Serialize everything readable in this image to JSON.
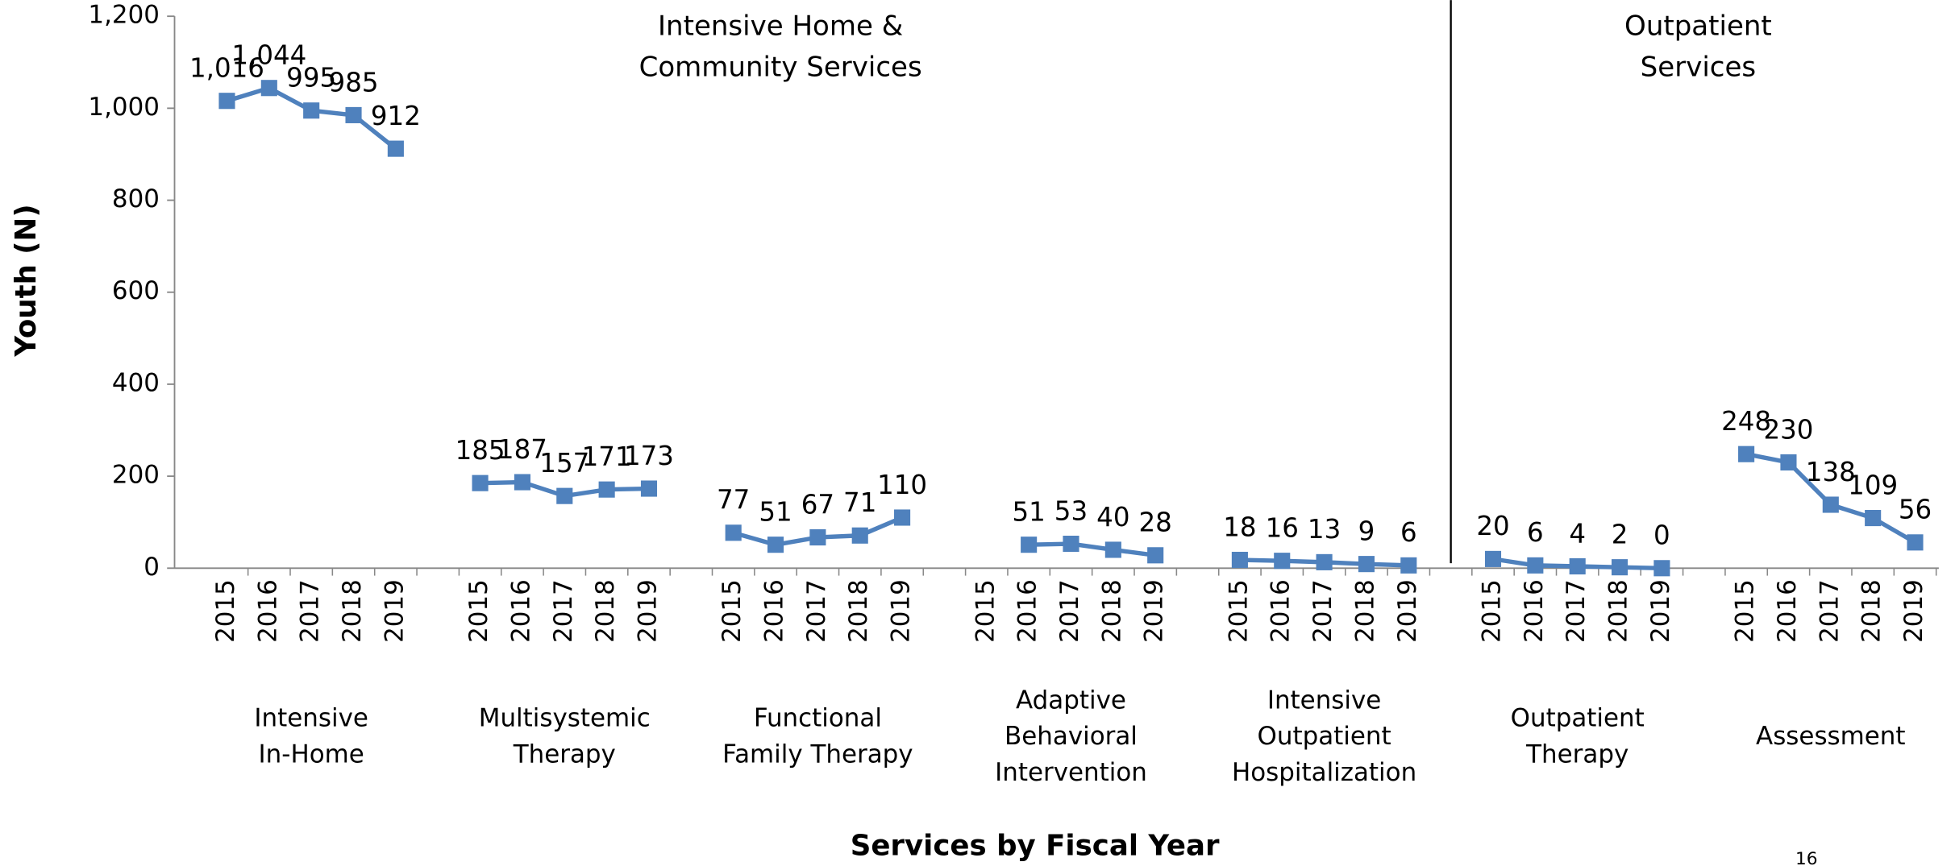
{
  "chart_data": {
    "type": "line",
    "y_axis_label": "Youth (N)",
    "x_axis_label": "Services by Fiscal Year",
    "sections": [
      {
        "label": [
          "Intensive Home &",
          "Community Services"
        ]
      },
      {
        "label": [
          "Outpatient",
          "Services"
        ]
      }
    ],
    "page_number": "16",
    "groups": [
      {
        "label": [
          "Intensive",
          "In-Home"
        ]
      },
      {
        "label": [
          "Multisystemic",
          "Therapy"
        ]
      },
      {
        "label": [
          "Functional",
          "Family Therapy"
        ]
      },
      {
        "label": [
          "Adaptive",
          "Behavioral",
          "Intervention"
        ]
      },
      {
        "label": [
          "Intensive",
          "Outpatient",
          "Hospitalization"
        ]
      },
      {
        "label": [
          "Outpatient",
          "Therapy"
        ]
      },
      {
        "label": [
          "Assessment"
        ]
      }
    ],
    "categories": [
      "2015",
      "2016",
      "2017",
      "2018",
      "2019",
      null,
      "2015",
      "2016",
      "2017",
      "2018",
      "2019",
      null,
      "2015",
      "2016",
      "2017",
      "2018",
      "2019",
      null,
      "2015",
      "2016",
      "2017",
      "2018",
      "2019",
      null,
      "2015",
      "2016",
      "2017",
      "2018",
      "2019",
      null,
      "2015",
      "2016",
      "2017",
      "2018",
      "2019",
      null,
      "2015",
      "2016",
      "2017",
      "2018",
      "2019"
    ],
    "series": [
      {
        "color": "#4f81bd",
        "values": [
          1016,
          1044,
          995,
          985,
          912,
          null,
          185,
          187,
          157,
          171,
          173,
          null,
          77,
          51,
          67,
          71,
          110,
          null,
          null,
          51,
          53,
          40,
          28,
          null,
          18,
          16,
          13,
          9,
          6,
          null,
          20,
          6,
          4,
          2,
          0,
          null,
          248,
          230,
          138,
          109,
          56
        ],
        "value_labels": [
          "1,016",
          "1,044",
          "995",
          "985",
          "912",
          null,
          "185",
          "187",
          "157",
          "171",
          "173",
          null,
          "77",
          "51",
          "67",
          "71",
          "110",
          null,
          null,
          "51",
          "53",
          "40",
          "28",
          null,
          "18",
          "16",
          "13",
          "9",
          "6",
          null,
          "20",
          "6",
          "4",
          "2",
          "0",
          null,
          "248",
          "230",
          "138",
          "109",
          "56"
        ]
      }
    ],
    "ylim": [
      0,
      1200
    ],
    "yticks": [
      0,
      200,
      400,
      600,
      800,
      {
        "value": 1000,
        "label": "1,000"
      },
      {
        "value": 1200,
        "label": "1,200"
      }
    ],
    "section_divider_after_group": 4
  }
}
